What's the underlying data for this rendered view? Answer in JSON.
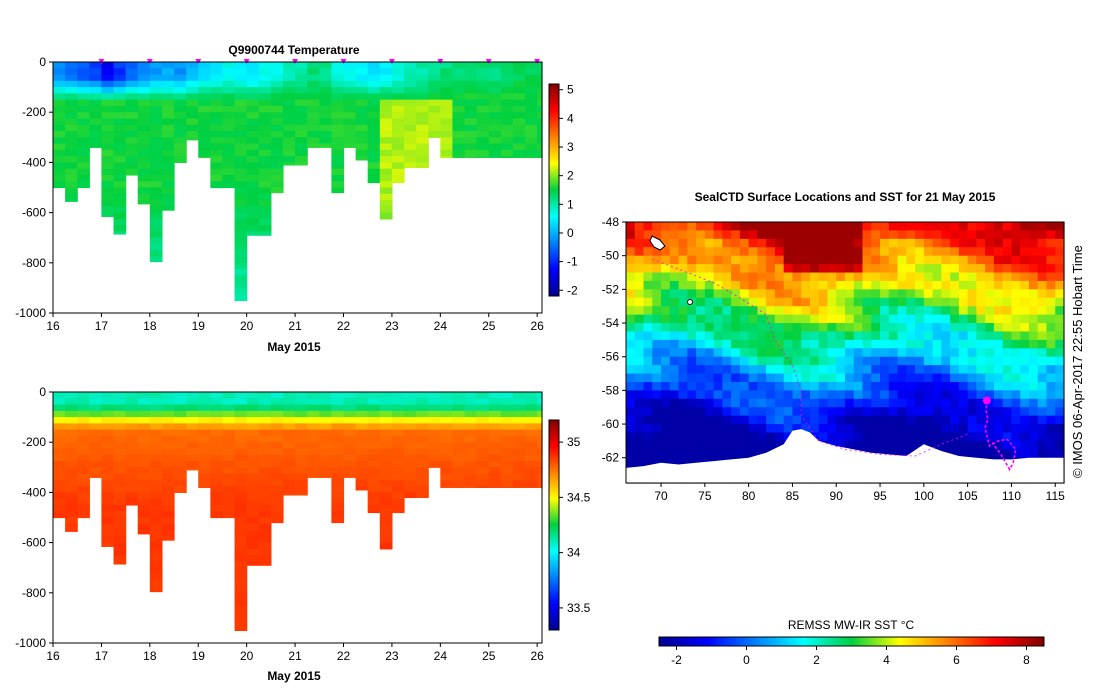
{
  "chart_data": [
    {
      "type": "heatmap",
      "panel": "temperature-section",
      "title": "Q9900744  Temperature",
      "xlabel": "May 2015",
      "ylabel": "",
      "x_ticks": [
        "16",
        "17",
        "18",
        "19",
        "20",
        "21",
        "22",
        "23",
        "24",
        "25",
        "26"
      ],
      "xlim": [
        16,
        26.1
      ],
      "y_ticks": [
        "0",
        "-200",
        "-400",
        "-600",
        "-800",
        "-1000"
      ],
      "ylim": [
        -1000,
        0
      ],
      "profile_times": [
        16.0,
        16.25,
        16.5,
        16.75,
        17.0,
        17.25,
        17.5,
        17.75,
        18.0,
        18.25,
        18.5,
        18.75,
        19.0,
        19.25,
        19.5,
        19.75,
        20.0,
        20.25,
        20.5,
        20.75,
        21.0,
        21.25,
        21.5,
        21.75,
        22.0,
        22.25,
        22.5,
        22.75,
        23.0,
        23.25,
        23.5,
        23.75,
        24.0,
        24.25,
        24.5,
        24.75,
        25.0,
        25.25,
        25.5,
        25.75,
        26.0
      ],
      "profile_depths": [
        -500,
        -555,
        -500,
        -340,
        -615,
        -685,
        -450,
        -565,
        -795,
        -590,
        -400,
        -310,
        -380,
        -500,
        -500,
        -950,
        -690,
        -690,
        -520,
        -410,
        -410,
        -340,
        -340,
        -520,
        -340,
        -390,
        -480,
        -625,
        -480,
        -420,
        -420,
        -300,
        -380,
        -380,
        -380,
        -380,
        -380,
        -380,
        -380,
        -380,
        -380
      ],
      "surface_temperature": [
        -0.2,
        -0.4,
        -0.6,
        -0.8,
        -1.3,
        -0.9,
        -0.5,
        -0.3,
        -0.1,
        0.0,
        -0.2,
        0.1,
        0.3,
        0.5,
        0.6,
        0.5,
        0.4,
        0.6,
        0.7,
        0.9,
        1.0,
        1.2,
        1.1,
        0.8,
        0.6,
        0.5,
        0.4,
        0.5,
        0.7,
        0.9,
        1.0,
        1.1,
        1.2,
        1.3,
        1.3,
        1.2,
        1.2,
        1.3,
        1.4,
        1.4,
        1.4
      ],
      "markers_at": [
        17,
        18,
        19,
        20,
        21,
        22,
        23,
        24,
        25,
        26
      ],
      "colorbar": {
        "ticks": [
          "-2",
          "-1",
          "0",
          "1",
          "2",
          "3",
          "4",
          "5"
        ],
        "min": -2.2,
        "max": 5.2
      }
    },
    {
      "type": "heatmap",
      "panel": "salinity-section",
      "title": "",
      "xlabel": "May 2015",
      "ylabel": "",
      "x_ticks": [
        "16",
        "17",
        "18",
        "19",
        "20",
        "21",
        "22",
        "23",
        "24",
        "25",
        "26"
      ],
      "xlim": [
        16,
        26.1
      ],
      "y_ticks": [
        "0",
        "-200",
        "-400",
        "-600",
        "-800",
        "-1000"
      ],
      "ylim": [
        -1000,
        0
      ],
      "colorbar": {
        "ticks": [
          "33.5",
          "34",
          "34.5",
          "35"
        ],
        "min": 33.3,
        "max": 35.2
      }
    },
    {
      "type": "heatmap",
      "panel": "sst-map",
      "title": "SealCTD Surface Locations and SST for 21 May 2015",
      "x_ticks": [
        "70",
        "75",
        "80",
        "85",
        "90",
        "95",
        "100",
        "105",
        "110",
        "115"
      ],
      "xlim": [
        66,
        116
      ],
      "y_ticks": [
        "-48",
        "-50",
        "-52",
        "-54",
        "-56",
        "-58",
        "-60",
        "-62"
      ],
      "ylim": [
        -63.5,
        -48
      ],
      "track_lon": [
        107.2,
        107.1,
        107.3,
        107.0,
        107.2,
        107.5,
        108.5,
        109.5,
        110.5,
        110.2,
        109.8,
        108.8,
        107.8
      ],
      "track_lat": [
        -58.6,
        -59.2,
        -59.7,
        -60.2,
        -60.7,
        -61.3,
        -61.0,
        -60.9,
        -61.5,
        -62.3,
        -62.7,
        -61.8,
        -61.1
      ],
      "current_position": [
        107.2,
        -58.6
      ],
      "colorbar": {
        "label": "REMSS MW-IR SST °C",
        "ticks": [
          "-2",
          "0",
          "2",
          "4",
          "6",
          "8"
        ],
        "min": -2.5,
        "max": 8.5
      }
    }
  ],
  "stamp": "© IMOS 06-Apr-2017 22:55 Hobart Time",
  "colors": {
    "track": "#ff00ff",
    "axis": "#000000",
    "background": "#ffffff"
  }
}
